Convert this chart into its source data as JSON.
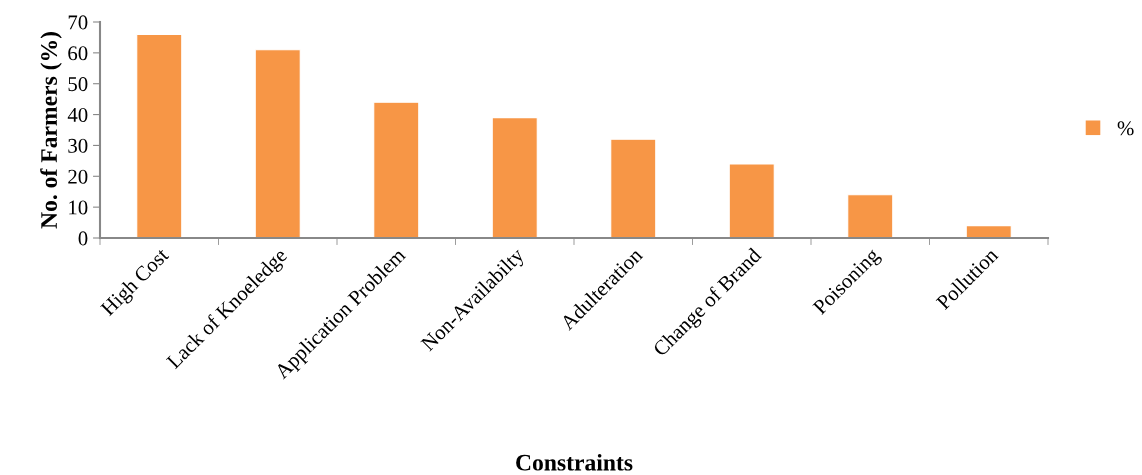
{
  "chart_data": {
    "type": "bar",
    "xlabel": "Constraints",
    "ylabel": "No. of Farmers (%)",
    "categories": [
      "High Cost",
      "Lack of Knoeledge",
      "Application Problem",
      "Non-Availabilty",
      "Adulteration",
      "Change of Brand",
      "Poisoning",
      "Pollution"
    ],
    "series": [
      {
        "name": "%",
        "color": "#f79646",
        "values": [
          66,
          61,
          44,
          39,
          32,
          24,
          14,
          4
        ]
      }
    ],
    "ylim": [
      0,
      70
    ],
    "yticks": [
      0,
      10,
      20,
      30,
      40,
      50,
      60,
      70
    ],
    "grid": false,
    "legend": "right"
  }
}
